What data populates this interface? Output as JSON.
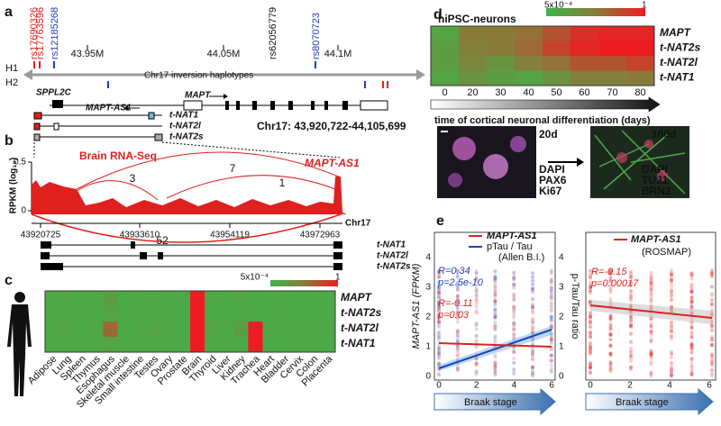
{
  "panels": {
    "a": {
      "label": "a",
      "snps_red": [
        "rs17690326",
        "rs17763596"
      ],
      "snp_blue_1": "rs12185268",
      "snp_black": "rs62056779",
      "snp_blue_2": "rs8070723",
      "positions": [
        "43.95M",
        "44.05M",
        "44.1M"
      ],
      "haplotypes": [
        "H1",
        "H2"
      ],
      "inversion": "Chr17 inversion haplotypes",
      "genes": {
        "sppl2c": "SPPL2C",
        "mapt": "MAPT",
        "mapt_as1": "MAPT-AS1"
      },
      "transcripts": [
        "t-NAT1",
        "t-NAT2l",
        "t-NAT2s"
      ],
      "coordinates": "Chr17: 43,920,722-44,105,699"
    },
    "b": {
      "label": "b",
      "y_axis": "RPKM (log₁₀)",
      "yticks": [
        "0.5",
        "0"
      ],
      "track": "Brain RNA-Seq",
      "gene": "MAPT-AS1",
      "junctions": [
        "3",
        "7",
        "1",
        "52"
      ],
      "positions": [
        "43920725",
        "43933610",
        "43954119",
        "43972963"
      ],
      "chrom": "Chr17",
      "transcripts": [
        "t-NAT1",
        "t-NAT2l",
        "t-NAT2s"
      ]
    },
    "c": {
      "label": "c",
      "colorbar": [
        "5x10⁻⁴",
        "1"
      ],
      "rows": [
        "MAPT",
        "t-NAT2s",
        "t-NAT2l",
        "t-NAT1"
      ],
      "tissues": [
        "Adipose",
        "Lung",
        "Spleen",
        "Thymus",
        "Esophagus",
        "Skeletal muscle",
        "Small intestine",
        "Testes",
        "Ovary",
        "Prostate",
        "Brain",
        "Thyroid",
        "Liver",
        "Kidney",
        "Trachea",
        "Heart",
        "Bladder",
        "Cervix",
        "Colon",
        "Placenta"
      ],
      "values": [
        [
          0.1,
          0.12,
          0.1,
          0.1,
          0.2,
          0.1,
          0.1,
          0.12,
          0.1,
          0.1,
          1,
          0.12,
          0.1,
          0.12,
          0.1,
          0.1,
          0.1,
          0.1,
          0.1,
          0.1
        ],
        [
          0.1,
          0.1,
          0.1,
          0.1,
          0.15,
          0.1,
          0.1,
          0.1,
          0.1,
          0.1,
          1,
          0.1,
          0.1,
          0.1,
          0.1,
          0.1,
          0.1,
          0.1,
          0.1,
          0.1
        ],
        [
          0.12,
          0.15,
          0.1,
          0.12,
          0.6,
          0.1,
          0.12,
          0.15,
          0.12,
          0.1,
          1,
          0.15,
          0.1,
          0.2,
          1,
          0.12,
          0.1,
          0.12,
          0.1,
          0.12
        ],
        [
          0.1,
          0.1,
          0.1,
          0.1,
          0.15,
          0.1,
          0.1,
          0.1,
          0.1,
          0.1,
          1,
          0.1,
          0.1,
          0.1,
          1,
          0.1,
          0.1,
          0.1,
          0.1,
          0.1
        ]
      ]
    },
    "d": {
      "label": "d",
      "title": "hiPSC-neurons",
      "colorbar": [
        "5x10⁻⁴",
        "1"
      ],
      "rows": [
        "MAPT",
        "t-NAT2s",
        "t-NAT2l",
        "t-NAT1"
      ],
      "days": [
        "0",
        "20",
        "30",
        "40",
        "50",
        "60",
        "70",
        "80"
      ],
      "values": [
        [
          0.15,
          0.5,
          0.5,
          0.55,
          0.7,
          0.9,
          0.95,
          0.95
        ],
        [
          0.2,
          0.45,
          0.5,
          0.6,
          0.8,
          0.95,
          1,
          1
        ],
        [
          0.2,
          0.4,
          0.3,
          0.45,
          0.55,
          0.7,
          0.7,
          0.8
        ],
        [
          0.15,
          0.3,
          0.2,
          0.15,
          0.3,
          0.45,
          0.45,
          0.5
        ]
      ],
      "x_axis": "time of cortical neuronal differentiation (days)",
      "images": [
        {
          "day": "20d",
          "stains": [
            "DAPI",
            "PAX6",
            "Ki67"
          ]
        },
        {
          "day": "100d",
          "stains": [
            "DAPI",
            "TUJ1",
            "BRN2"
          ]
        }
      ]
    },
    "e": {
      "label": "e",
      "left": {
        "legend": [
          "MAPT-AS1",
          "pTau / Tau"
        ],
        "source": "(Allen B.I.)",
        "stats": [
          "R=0.34",
          "p=2.5e-10",
          "R=-0.11",
          "p=0.03"
        ],
        "y_axis": "MAPT-AS1 (FPKM)",
        "yticks": [
          "0",
          "1",
          "2",
          "3",
          "4"
        ],
        "y2_axis": "p-Tau/Tau ratio",
        "y2ticks": [
          "0",
          "1",
          "2",
          "3",
          "4"
        ],
        "xticks": [
          "0",
          "2",
          "4",
          "6"
        ],
        "x_axis": "Braak stage"
      },
      "right": {
        "legend": [
          "MAPT-AS1"
        ],
        "source": "(ROSMAP)",
        "stats": [
          "R=-0.15",
          "p=0.00017"
        ],
        "xticks": [
          "0",
          "2",
          "4",
          "6"
        ],
        "x_axis": "Braak stage"
      }
    }
  }
}
